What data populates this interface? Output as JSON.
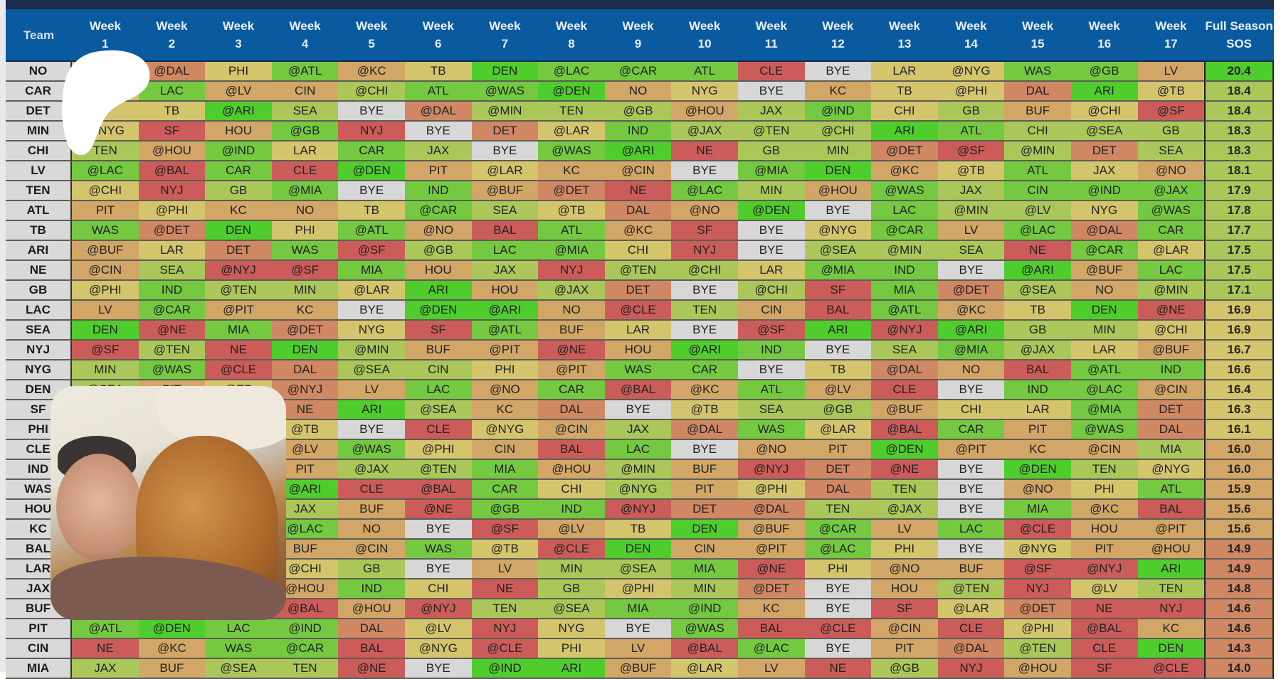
{
  "header": {
    "team_label": "Team",
    "weeks": [
      "Week\n1",
      "Week\n2",
      "Week\n3",
      "Week\n4",
      "Week\n5",
      "Week\n6",
      "Week\n7",
      "Week\n8",
      "Week\n9",
      "Week\n10",
      "Week\n11",
      "Week\n12",
      "Week\n13",
      "Week\n14",
      "Week\n15",
      "Week\n16",
      "Week\n17"
    ],
    "sos_label": "Full Season\nSOS"
  },
  "colors": {
    "G": "#4fcd2c",
    "g": "#74c941",
    "l": "#abc75a",
    "y": "#d4c56d",
    "t": "#d2a666",
    "o": "#d08763",
    "r": "#cc5c59",
    "b": "#d7d7d7",
    "header": "#0a5aa0"
  },
  "rows": [
    {
      "team": "NO",
      "games": [
        "",
        "@DAL",
        "PHI",
        "@ATL",
        "@KC",
        "TB",
        "DEN",
        "@LAC",
        "@CAR",
        "ATL",
        "CLE",
        "BYE",
        "LAR",
        "@NYG",
        "WAS",
        "@GB",
        "LV"
      ],
      "colors": "yoygtyGgggrbyyggt",
      "sos": "20.4",
      "sos_color": "G"
    },
    {
      "team": "CAR",
      "games": [
        "",
        "LAC",
        "@LV",
        "CIN",
        "@CHI",
        "ATL",
        "@WAS",
        "@DEN",
        "NO",
        "NYG",
        "BYE",
        "KC",
        "TB",
        "@PHI",
        "DAL",
        "ARI",
        "@TB"
      ],
      "colors": "ygttlggGtybtyyoGy",
      "sos": "18.4",
      "sos_color": "l"
    },
    {
      "team": "DET",
      "games": [
        "",
        "TB",
        "@ARI",
        "SEA",
        "BYE",
        "@DAL",
        "@MIN",
        "TEN",
        "@GB",
        "@HOU",
        "JAX",
        "@IND",
        "CHI",
        "GB",
        "BUF",
        "@CHI",
        "@SF"
      ],
      "colors": "yyGlbollltlgyltyr",
      "sos": "18.4",
      "sos_color": "l"
    },
    {
      "team": "MIN",
      "games": [
        "@NYG",
        "SF",
        "HOU",
        "@GB",
        "NYJ",
        "BYE",
        "DET",
        "@LAR",
        "IND",
        "@JAX",
        "@TEN",
        "@CHI",
        "ARI",
        "ATL",
        "CHI",
        "@SEA",
        "GB"
      ],
      "colors": "yrtgrboyglllGglll",
      "sos": "18.3",
      "sos_color": "l"
    },
    {
      "team": "CHI",
      "games": [
        "TEN",
        "@HOU",
        "@IND",
        "LAR",
        "CAR",
        "JAX",
        "BYE",
        "@WAS",
        "@ARI",
        "NE",
        "GB",
        "MIN",
        "@DET",
        "@SF",
        "@MIN",
        "DET",
        "SEA"
      ],
      "colors": "ltgyglbgGrllorlol",
      "sos": "18.3",
      "sos_color": "l"
    },
    {
      "team": "LV",
      "games": [
        "@LAC",
        "@BAL",
        "CAR",
        "CLE",
        "@DEN",
        "PIT",
        "@LAR",
        "KC",
        "@CIN",
        "BYE",
        "@MIA",
        "DEN",
        "@KC",
        "@TB",
        "ATL",
        "JAX",
        "@NO"
      ],
      "colors": "grgrGtyttbgGtygyt",
      "sos": "18.1",
      "sos_color": "l"
    },
    {
      "team": "TEN",
      "games": [
        "@CHI",
        "NYJ",
        "GB",
        "@MIA",
        "BYE",
        "IND",
        "@BUF",
        "@DET",
        "NE",
        "@LAC",
        "MIN",
        "@HOU",
        "@WAS",
        "JAX",
        "CIN",
        "@IND",
        "@JAX"
      ],
      "colors": "yrlgbgtorgltglggg",
      "sos": "17.9",
      "sos_color": "l"
    },
    {
      "team": "ATL",
      "games": [
        "PIT",
        "@PHI",
        "KC",
        "NO",
        "TB",
        "@CAR",
        "SEA",
        "@TB",
        "DAL",
        "@NO",
        "@DEN",
        "BYE",
        "LAC",
        "@MIN",
        "@LV",
        "NYG",
        "@WAS"
      ],
      "colors": "tyttyglyotGbgllyg",
      "sos": "17.8",
      "sos_color": "l"
    },
    {
      "team": "TB",
      "games": [
        "WAS",
        "@DET",
        "DEN",
        "PHI",
        "@ATL",
        "@NO",
        "BAL",
        "ATL",
        "@KC",
        "SF",
        "BYE",
        "@NYG",
        "@CAR",
        "LV",
        "@LAC",
        "@DAL",
        "CAR"
      ],
      "colors": "goGygtrgtrbygtgog",
      "sos": "17.7",
      "sos_color": "l"
    },
    {
      "team": "ARI",
      "games": [
        "@BUF",
        "LAR",
        "DET",
        "WAS",
        "@SF",
        "@GB",
        "LAC",
        "@MIA",
        "CHI",
        "NYJ",
        "BYE",
        "@SEA",
        "@MIN",
        "SEA",
        "NE",
        "@CAR",
        "@LAR"
      ],
      "colors": "tyogrlggyrblllrgy",
      "sos": "17.5",
      "sos_color": "l"
    },
    {
      "team": "NE",
      "games": [
        "@CIN",
        "SEA",
        "@NYJ",
        "@SF",
        "MIA",
        "HOU",
        "JAX",
        "NYJ",
        "@TEN",
        "@CHI",
        "LAR",
        "@MIA",
        "IND",
        "BYE",
        "@ARI",
        "@BUF",
        "LAC"
      ],
      "colors": "tlrrgtlrllyggbGtg",
      "sos": "17.5",
      "sos_color": "l"
    },
    {
      "team": "GB",
      "games": [
        "@PHI",
        "IND",
        "@TEN",
        "MIN",
        "@LAR",
        "ARI",
        "HOU",
        "@JAX",
        "DET",
        "BYE",
        "@CHI",
        "SF",
        "MIA",
        "@DET",
        "@SEA",
        "NO",
        "@MIN"
      ],
      "colors": "yglly Gtlobl rgoltl",
      "sos": "17.1",
      "sos_color": "l"
    },
    {
      "team": "LAC",
      "games": [
        "LV",
        "@CAR",
        "@PIT",
        "KC",
        "BYE",
        "@DEN",
        "@ARI",
        "NO",
        "@CLE",
        "TEN",
        "CIN",
        "BAL",
        "@ATL",
        "@KC",
        "TB",
        "DEN",
        "@NE"
      ],
      "colors": "tgttbGGtrltrgtyGr",
      "sos": "16.9",
      "sos_color": "y"
    },
    {
      "team": "SEA",
      "games": [
        "DEN",
        "@NE",
        "MIA",
        "@DET",
        "NYG",
        "SF",
        "@ATL",
        "BUF",
        "LAR",
        "BYE",
        "@SF",
        "ARI",
        "@NYJ",
        "@ARI",
        "GB",
        "MIN",
        "@CHI"
      ],
      "colors": "Grgoyrgtybr GrGlly",
      "sos": "16.9",
      "sos_color": "y"
    },
    {
      "team": "NYJ",
      "games": [
        "@SF",
        "@TEN",
        "NE",
        "DEN",
        "@MIN",
        "BUF",
        "@PIT",
        "@NE",
        "HOU",
        "@ARI",
        "IND",
        "BYE",
        "SEA",
        "@MIA",
        "@JAX",
        "LAR",
        "@BUF"
      ],
      "colors": "rlrGlttrtGgblglyt",
      "sos": "16.7",
      "sos_color": "y"
    },
    {
      "team": "NYG",
      "games": [
        "MIN",
        "@WAS",
        "@CLE",
        "DAL",
        "@SEA",
        "CIN",
        "PHI",
        "@PIT",
        "WAS",
        "CAR",
        "BYE",
        "TB",
        "@DAL",
        "NO",
        "BAL",
        "@ATL",
        "IND"
      ],
      "colors": "lgrolly tggbyotrgg",
      "sos": "16.6",
      "sos_color": "y"
    },
    {
      "team": "DEN",
      "games": [
        "@SEA",
        "PIT",
        "@TB",
        "@NYJ",
        "LV",
        "LAC",
        "@NO",
        "CAR",
        "@BAL",
        "@KC",
        "ATL",
        "@LV",
        "CLE",
        "BYE",
        "IND",
        "@LAC",
        "@CIN"
      ],
      "colors": "ltyotgtgrtgtrbggt",
      "sos": "16.4",
      "sos_color": "y"
    },
    {
      "team": "SF",
      "games": [
        "",
        "",
        "",
        "NE",
        "ARI",
        "@SEA",
        "KC",
        "DAL",
        "BYE",
        "@TB",
        "SEA",
        "@GB",
        "@BUF",
        "CHI",
        "LAR",
        "@MIA",
        "DET"
      ],
      "colors": "yyyoGltobyllt yygo",
      "sos": "16.3",
      "sos_color": "y"
    },
    {
      "team": "PHI",
      "games": [
        "",
        "",
        "",
        "@TB",
        "BYE",
        "CLE",
        "@NYG",
        "@CIN",
        "JAX",
        "@DAL",
        "WAS",
        "@LAR",
        "@BAL",
        "CAR",
        "PIT",
        "@WAS",
        "DAL"
      ],
      "colors": "yyyybrytlogyrgtgo",
      "sos": "16.1",
      "sos_color": "y"
    },
    {
      "team": "CLE",
      "games": [
        "",
        "",
        "",
        "@LV",
        "@WAS",
        "@PHI",
        "CIN",
        "BAL",
        "LAC",
        "BYE",
        "@NO",
        "PIT",
        "@DEN",
        "@PIT",
        "KC",
        "@CIN",
        "MIA"
      ],
      "colors": "yyytgytrgbttGtttl",
      "sos": "16.0",
      "sos_color": "t"
    },
    {
      "team": "IND",
      "games": [
        "",
        "",
        "",
        "PIT",
        "@JAX",
        "@TEN",
        "MIA",
        "@HOU",
        "@MIN",
        "BUF",
        "@NYJ",
        "DET",
        "@NE",
        "BYE",
        "@DEN",
        "TEN",
        "@NYG"
      ],
      "colors": "yyytllgtltrorbGly",
      "sos": "16.0",
      "sos_color": "t"
    },
    {
      "team": "WAS",
      "games": [
        "",
        "",
        "",
        "@ARI",
        "CLE",
        "@BAL",
        "CAR",
        "CHI",
        "@NYG",
        "PIT",
        "@PHI",
        "DAL",
        "TEN",
        "BYE",
        "@NO",
        "PHI",
        "ATL"
      ],
      "colors": "yyyGrrgyltyolbtyg",
      "sos": "15.9",
      "sos_color": "t"
    },
    {
      "team": "HOU",
      "games": [
        "",
        "",
        "",
        "JAX",
        "BUF",
        "@NE",
        "@GB",
        "IND",
        "@NYJ",
        "DET",
        "@DAL",
        "TEN",
        "@JAX",
        "BYE",
        "MIA",
        "@KC",
        "BAL"
      ],
      "colors": "yyyltrggrooll bgtr",
      "sos": "15.6",
      "sos_color": "t"
    },
    {
      "team": "KC",
      "games": [
        "",
        "",
        "",
        "@LAC",
        "NO",
        "BYE",
        "@SF",
        "@LV",
        "TB",
        "DEN",
        "@BUF",
        "@CAR",
        "LV",
        "LAC",
        "@CLE",
        "HOU",
        "@PIT"
      ],
      "colors": "yyygtbrtyGtgtgrtt",
      "sos": "15.6",
      "sos_color": "t"
    },
    {
      "team": "BAL",
      "games": [
        "",
        "",
        "",
        "BUF",
        "@CIN",
        "WAS",
        "@TB",
        "@CLE",
        "DEN",
        "CIN",
        "@PIT",
        "@LAC",
        "PHI",
        "BYE",
        "@NYG",
        "PIT",
        "@HOU"
      ],
      "colors": "yyyttgyrGttgybytt",
      "sos": "14.9",
      "sos_color": "o"
    },
    {
      "team": "LAR",
      "games": [
        "",
        "",
        "",
        "@CHI",
        "GB",
        "BYE",
        "LV",
        "MIN",
        "@SEA",
        "MIA",
        "@NE",
        "PHI",
        "@NO",
        "BUF",
        "@SF",
        "@NYJ",
        "ARI"
      ],
      "colors": "yyyylbtllgrytt rrG",
      "sos": "14.9",
      "sos_color": "o"
    },
    {
      "team": "JAX",
      "games": [
        "",
        "",
        "",
        "@HOU",
        "IND",
        "CHI",
        "NE",
        "GB",
        "@PHI",
        "MIN",
        "@DET",
        "BYE",
        "HOU",
        "@TEN",
        "NYJ",
        "@LV",
        "TEN"
      ],
      "colors": "yyytgyrlylobtlryl",
      "sos": "14.8",
      "sos_color": "o"
    },
    {
      "team": "BUF",
      "games": [
        "",
        "",
        "",
        "@BAL",
        "@HOU",
        "@NYJ",
        "TEN",
        "@SEA",
        "MIA",
        "@IND",
        "KC",
        "BYE",
        "SF",
        "@LAR",
        "@DET",
        "NE",
        "NYJ"
      ],
      "colors": "yyyrtrllggtbryorr",
      "sos": "14.6",
      "sos_color": "o"
    },
    {
      "team": "PIT",
      "games": [
        "@ATL",
        "@DEN",
        "LAC",
        "@IND",
        "DAL",
        "@LV",
        "NYJ",
        "NYG",
        "BYE",
        "@WAS",
        "BAL",
        "@CLE",
        "@CIN",
        "CLE",
        "@PHI",
        "@BAL",
        "KC"
      ],
      "colors": "gGggoyrybgrrtryrt",
      "sos": "14.6",
      "sos_color": "o"
    },
    {
      "team": "CIN",
      "games": [
        "NE",
        "@KC",
        "WAS",
        "@CAR",
        "BAL",
        "@NYG",
        "@CLE",
        "PHI",
        "LV",
        "@BAL",
        "@LAC",
        "BYE",
        "PIT",
        "@DAL",
        "@TEN",
        "CLE",
        "DEN"
      ],
      "colors": "rtggryryt rgbtolrG",
      "sos": "14.3",
      "sos_color": "o"
    },
    {
      "team": "MIA",
      "games": [
        "JAX",
        "BUF",
        "@SEA",
        "TEN",
        "@NE",
        "BYE",
        "@IND",
        "ARI",
        "@BUF",
        "@LAR",
        "LV",
        "NE",
        "@GB",
        "NYJ",
        "@HOU",
        "SF",
        "@CLE"
      ],
      "colors": "ltllrbGGtytrlrtrr",
      "sos": "14.0",
      "sos_color": "o"
    }
  ]
}
